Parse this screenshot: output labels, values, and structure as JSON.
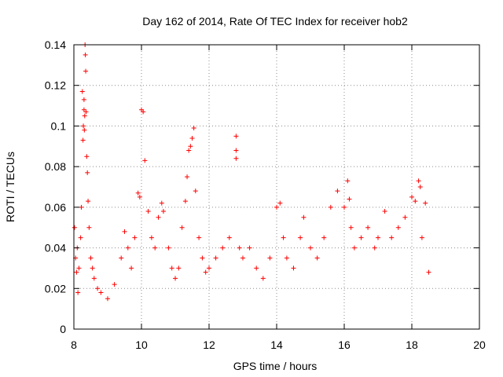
{
  "chart_data": {
    "type": "scatter",
    "title": "Day 162 of 2014, Rate Of TEC Index for receiver hob2",
    "xlabel": "GPS time / hours",
    "ylabel": "ROTI / TECUs",
    "xlim": [
      8,
      20
    ],
    "ylim": [
      0,
      0.14
    ],
    "x_ticks": [
      8,
      10,
      12,
      14,
      16,
      18,
      20
    ],
    "y_ticks": [
      0,
      0.02,
      0.04,
      0.06,
      0.08,
      0.1,
      0.12,
      0.14
    ],
    "x_tick_labels": [
      "8",
      "10",
      "12",
      "14",
      "16",
      "18",
      "20"
    ],
    "y_tick_labels": [
      "0",
      "0.02",
      "0.04",
      "0.06",
      "0.08",
      "0.1",
      "0.12",
      "0.14"
    ],
    "grid": true,
    "marker": "+",
    "series": [
      {
        "name": "hob2",
        "color": "#ff0000",
        "x": [
          8.02,
          8.05,
          8.08,
          8.1,
          8.12,
          8.15,
          8.2,
          8.22,
          8.25,
          8.27,
          8.28,
          8.3,
          8.3,
          8.31,
          8.32,
          8.33,
          8.34,
          8.35,
          8.36,
          8.38,
          8.4,
          8.42,
          8.45,
          8.5,
          8.55,
          8.6,
          8.7,
          8.8,
          9.0,
          9.2,
          9.4,
          9.5,
          9.6,
          9.7,
          9.8,
          9.9,
          9.95,
          10.0,
          10.05,
          10.1,
          10.2,
          10.3,
          10.4,
          10.5,
          10.6,
          10.65,
          10.8,
          10.9,
          11.0,
          11.1,
          11.2,
          11.3,
          11.35,
          11.4,
          11.45,
          11.5,
          11.55,
          11.6,
          11.7,
          11.8,
          11.9,
          12.0,
          12.2,
          12.4,
          12.6,
          12.8,
          12.8,
          12.8,
          12.9,
          13.0,
          13.2,
          13.4,
          13.6,
          13.8,
          14.0,
          14.1,
          14.2,
          14.3,
          14.5,
          14.7,
          14.8,
          15.0,
          15.2,
          15.4,
          15.6,
          15.8,
          16.0,
          16.1,
          16.15,
          16.2,
          16.3,
          16.5,
          16.7,
          16.9,
          17.0,
          17.2,
          17.4,
          17.6,
          17.8,
          18.0,
          18.1,
          18.2,
          18.25,
          18.3,
          18.4,
          18.5
        ],
        "y": [
          0.05,
          0.035,
          0.028,
          0.04,
          0.018,
          0.03,
          0.045,
          0.06,
          0.117,
          0.093,
          0.1,
          0.113,
          0.108,
          0.098,
          0.105,
          0.14,
          0.135,
          0.127,
          0.107,
          0.085,
          0.077,
          0.063,
          0.05,
          0.035,
          0.03,
          0.025,
          0.02,
          0.018,
          0.015,
          0.022,
          0.035,
          0.048,
          0.04,
          0.03,
          0.045,
          0.067,
          0.065,
          0.108,
          0.107,
          0.083,
          0.058,
          0.045,
          0.04,
          0.055,
          0.062,
          0.058,
          0.04,
          0.03,
          0.025,
          0.03,
          0.05,
          0.063,
          0.075,
          0.088,
          0.09,
          0.094,
          0.099,
          0.068,
          0.045,
          0.035,
          0.028,
          0.03,
          0.035,
          0.04,
          0.045,
          0.095,
          0.088,
          0.084,
          0.04,
          0.035,
          0.04,
          0.03,
          0.025,
          0.035,
          0.06,
          0.062,
          0.045,
          0.035,
          0.03,
          0.045,
          0.055,
          0.04,
          0.035,
          0.045,
          0.06,
          0.068,
          0.06,
          0.073,
          0.064,
          0.05,
          0.04,
          0.045,
          0.05,
          0.04,
          0.045,
          0.058,
          0.045,
          0.05,
          0.055,
          0.065,
          0.063,
          0.073,
          0.07,
          0.045,
          0.062,
          0.028
        ]
      }
    ]
  }
}
